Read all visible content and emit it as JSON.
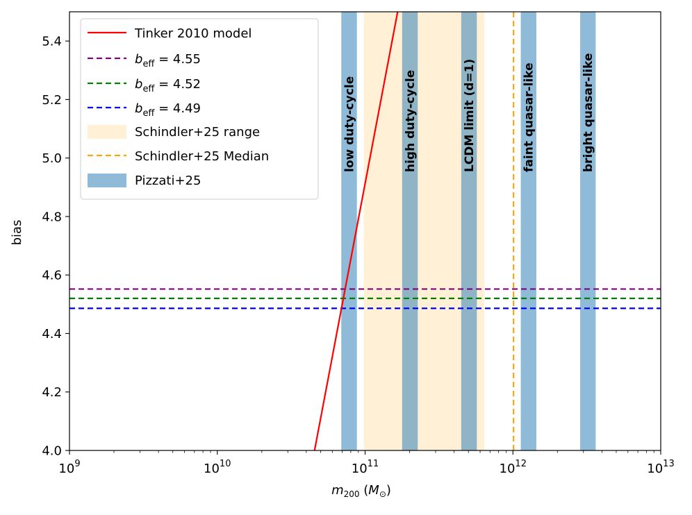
{
  "chart_data": {
    "type": "line",
    "xscale": "log",
    "xlim": [
      1000000000,
      10000000000000
    ],
    "ylim": [
      4.0,
      5.5
    ],
    "xlabel": "m200 (M⊙)",
    "xlabel_main": "m",
    "xlabel_sub": "200",
    "xlabel_unit_open": " (",
    "xlabel_unit": "M",
    "xlabel_unit_sub": "⊙",
    "xlabel_unit_close": ")",
    "ylabel": "bias",
    "x_ticks": [
      {
        "value": 1000000000,
        "base": "10",
        "exp": "9"
      },
      {
        "value": 10000000000,
        "base": "10",
        "exp": "10"
      },
      {
        "value": 100000000000,
        "base": "10",
        "exp": "11"
      },
      {
        "value": 1000000000000,
        "base": "10",
        "exp": "12"
      },
      {
        "value": 10000000000000,
        "base": "10",
        "exp": "13"
      }
    ],
    "y_ticks": [
      "4.0",
      "4.2",
      "4.4",
      "4.6",
      "4.8",
      "5.0",
      "5.2",
      "5.4"
    ],
    "tinker": {
      "name": "Tinker 2010 model",
      "color": "#ff0000",
      "points": [
        [
          45500000000,
          4.0
        ],
        [
          166000000000,
          5.5
        ]
      ]
    },
    "b_eff": [
      {
        "name": "b_eff = 4.55",
        "label_prefix": "b",
        "label_sub": "eff",
        "label_value": " = 4.55",
        "value": 4.552,
        "color": "#800080"
      },
      {
        "name": "b_eff = 4.52",
        "label_prefix": "b",
        "label_sub": "eff",
        "label_value": " = 4.52",
        "value": 4.52,
        "color": "#008000"
      },
      {
        "name": "b_eff = 4.49",
        "label_prefix": "b",
        "label_sub": "eff",
        "label_value": " = 4.49",
        "value": 4.486,
        "color": "#0000ff"
      }
    ],
    "schindler_range": {
      "name": "Schindler+25 range",
      "x0": 98000000000,
      "x1": 640000000000,
      "color": "#ffe4b5"
    },
    "schindler_median": {
      "name": "Schindler+25 Median",
      "x": 1010000000000,
      "color": "#ffa500"
    },
    "pizzati": {
      "name": "Pizzati+25",
      "color": "#1f77b4",
      "bands": [
        {
          "label": "low duty-cycle",
          "x0": 69000000000,
          "x1": 88000000000
        },
        {
          "label": "high duty-cycle",
          "x0": 178000000000,
          "x1": 227000000000
        },
        {
          "label": "LCDM limit (d=1)",
          "x0": 447000000000,
          "x1": 570000000000
        },
        {
          "label": "faint quasar-like",
          "x0": 1130000000000,
          "x1": 1440000000000
        },
        {
          "label": "bright quasar-like",
          "x0": 2850000000000,
          "x1": 3630000000000
        }
      ]
    }
  }
}
